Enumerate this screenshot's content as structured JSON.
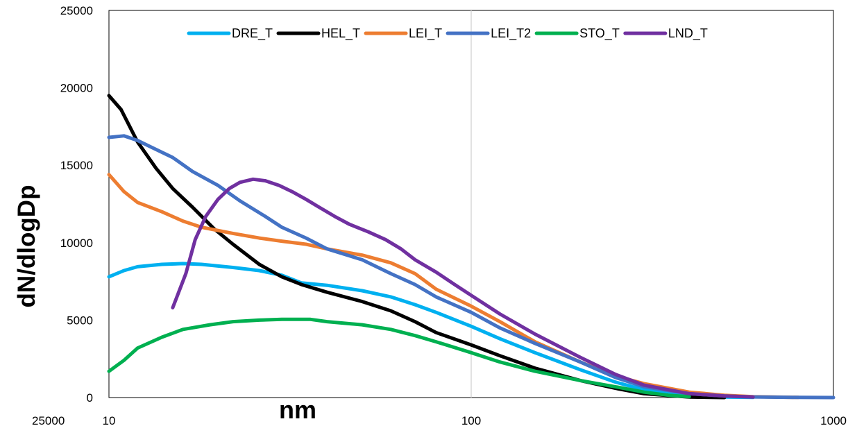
{
  "chart_data": {
    "type": "line",
    "xlabel": "nm",
    "ylabel": "dN/dlogDp",
    "x_scale": "log",
    "xlim": [
      10,
      1000
    ],
    "ylim": [
      0,
      25000
    ],
    "x_ticks": [
      "10",
      "100",
      "1000"
    ],
    "y_ticks": [
      "0",
      "5000",
      "10000",
      "15000",
      "20000",
      "25000"
    ],
    "stray_text": "25000",
    "grid": "vertical gridline at x=100",
    "legend_position": "top",
    "series": [
      {
        "name": "DRE_T",
        "color": "#00b0f0",
        "points": [
          [
            10,
            7800
          ],
          [
            11,
            8200
          ],
          [
            12,
            8450
          ],
          [
            14,
            8600
          ],
          [
            16,
            8650
          ],
          [
            18,
            8600
          ],
          [
            22,
            8400
          ],
          [
            26,
            8200
          ],
          [
            30,
            7900
          ],
          [
            34,
            7400
          ],
          [
            40,
            7250
          ],
          [
            50,
            6900
          ],
          [
            60,
            6500
          ],
          [
            70,
            6000
          ],
          [
            80,
            5500
          ],
          [
            100,
            4600
          ],
          [
            120,
            3800
          ],
          [
            150,
            2900
          ],
          [
            200,
            1800
          ],
          [
            250,
            1000
          ],
          [
            300,
            500
          ],
          [
            350,
            250
          ],
          [
            400,
            100
          ],
          [
            500,
            30
          ],
          [
            600,
            10
          ]
        ]
      },
      {
        "name": "HEL_T",
        "color": "#000000",
        "points": [
          [
            10,
            19500
          ],
          [
            10.8,
            18600
          ],
          [
            12,
            16500
          ],
          [
            13.5,
            14800
          ],
          [
            15,
            13500
          ],
          [
            17,
            12300
          ],
          [
            19.5,
            10900
          ],
          [
            22,
            9900
          ],
          [
            26,
            8600
          ],
          [
            30,
            7800
          ],
          [
            34,
            7300
          ],
          [
            40,
            6800
          ],
          [
            50,
            6200
          ],
          [
            60,
            5600
          ],
          [
            70,
            4900
          ],
          [
            80,
            4200
          ],
          [
            100,
            3400
          ],
          [
            120,
            2700
          ],
          [
            150,
            1900
          ],
          [
            200,
            1100
          ],
          [
            250,
            600
          ],
          [
            300,
            250
          ],
          [
            400,
            30
          ],
          [
            500,
            0
          ]
        ]
      },
      {
        "name": "LEI_T",
        "color": "#ed7d31",
        "points": [
          [
            10,
            14400
          ],
          [
            11,
            13300
          ],
          [
            12,
            12600
          ],
          [
            14,
            12000
          ],
          [
            16,
            11400
          ],
          [
            18,
            11000
          ],
          [
            22,
            10600
          ],
          [
            26,
            10300
          ],
          [
            30,
            10100
          ],
          [
            35,
            9900
          ],
          [
            40,
            9600
          ],
          [
            50,
            9200
          ],
          [
            60,
            8700
          ],
          [
            70,
            8000
          ],
          [
            80,
            7000
          ],
          [
            100,
            5900
          ],
          [
            120,
            4900
          ],
          [
            150,
            3600
          ],
          [
            200,
            2300
          ],
          [
            250,
            1400
          ],
          [
            300,
            900
          ],
          [
            400,
            350
          ],
          [
            500,
            150
          ],
          [
            600,
            60
          ],
          [
            800,
            10
          ]
        ]
      },
      {
        "name": "LEI_T2",
        "color": "#4472c4",
        "points": [
          [
            10,
            16800
          ],
          [
            11,
            16900
          ],
          [
            12,
            16600
          ],
          [
            13,
            16200
          ],
          [
            15,
            15500
          ],
          [
            17,
            14600
          ],
          [
            20,
            13700
          ],
          [
            23,
            12700
          ],
          [
            27,
            11700
          ],
          [
            30,
            11000
          ],
          [
            35,
            10300
          ],
          [
            40,
            9600
          ],
          [
            50,
            8900
          ],
          [
            60,
            8000
          ],
          [
            70,
            7300
          ],
          [
            80,
            6500
          ],
          [
            100,
            5500
          ],
          [
            120,
            4500
          ],
          [
            150,
            3500
          ],
          [
            200,
            2300
          ],
          [
            250,
            1300
          ],
          [
            300,
            700
          ],
          [
            400,
            250
          ],
          [
            500,
            100
          ],
          [
            600,
            40
          ],
          [
            800,
            10
          ],
          [
            1000,
            0
          ]
        ]
      },
      {
        "name": "STO_T",
        "color": "#00b050",
        "points": [
          [
            10,
            1700
          ],
          [
            11,
            2400
          ],
          [
            12,
            3200
          ],
          [
            14,
            3900
          ],
          [
            16,
            4400
          ],
          [
            19,
            4700
          ],
          [
            22,
            4900
          ],
          [
            26,
            5000
          ],
          [
            30,
            5050
          ],
          [
            36,
            5050
          ],
          [
            40,
            4900
          ],
          [
            50,
            4700
          ],
          [
            60,
            4400
          ],
          [
            70,
            4000
          ],
          [
            80,
            3600
          ],
          [
            100,
            2900
          ],
          [
            120,
            2300
          ],
          [
            150,
            1700
          ],
          [
            200,
            1100
          ],
          [
            250,
            700
          ],
          [
            300,
            350
          ],
          [
            350,
            150
          ],
          [
            400,
            60
          ]
        ]
      },
      {
        "name": "LND_T",
        "color": "#7030a0",
        "points": [
          [
            15,
            5800
          ],
          [
            16.3,
            8000
          ],
          [
            17.3,
            10200
          ],
          [
            18.5,
            11700
          ],
          [
            20,
            12800
          ],
          [
            21.5,
            13500
          ],
          [
            23,
            13900
          ],
          [
            25,
            14100
          ],
          [
            27,
            14000
          ],
          [
            29.5,
            13700
          ],
          [
            32,
            13300
          ],
          [
            35,
            12800
          ],
          [
            38,
            12300
          ],
          [
            42,
            11700
          ],
          [
            46,
            11200
          ],
          [
            52,
            10700
          ],
          [
            58,
            10200
          ],
          [
            64,
            9600
          ],
          [
            70,
            8900
          ],
          [
            80,
            8100
          ],
          [
            90,
            7300
          ],
          [
            100,
            6600
          ],
          [
            120,
            5400
          ],
          [
            150,
            4100
          ],
          [
            200,
            2600
          ],
          [
            250,
            1500
          ],
          [
            300,
            800
          ],
          [
            400,
            250
          ],
          [
            500,
            100
          ],
          [
            600,
            30
          ]
        ]
      }
    ]
  }
}
